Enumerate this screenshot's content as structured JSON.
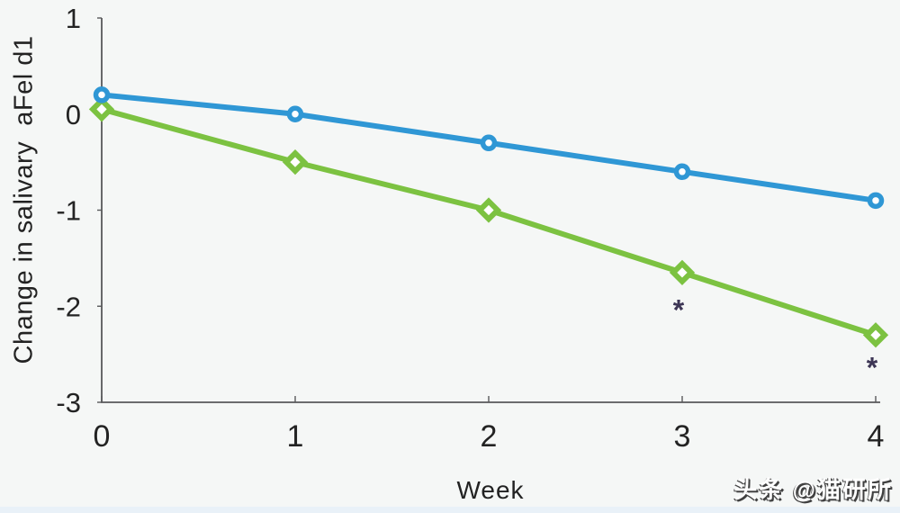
{
  "figure": {
    "background": "#f5f7f6",
    "watermark": {
      "text": "头条 @猫研所"
    }
  },
  "chart_data": {
    "type": "line",
    "x": [
      0,
      1,
      2,
      3,
      4
    ],
    "x_ticks": [
      "0",
      "1",
      "2",
      "3",
      "4"
    ],
    "y_ticks": [
      "1",
      "0",
      "-1",
      "-2",
      "-3"
    ],
    "y_tick_values": [
      1,
      0,
      -1,
      -2,
      -3
    ],
    "xlim": [
      0,
      4
    ],
    "ylim": [
      -3,
      1
    ],
    "xlabel": "Week",
    "ylabel": "Change in salivary  aFel d1",
    "grid": false,
    "legend": "none",
    "series": [
      {
        "name": "blue-circle-series",
        "marker": "circle",
        "color": "#2f97d5",
        "values": [
          0.2,
          0.0,
          -0.3,
          -0.6,
          -0.9
        ]
      },
      {
        "name": "green-diamond-series",
        "marker": "diamond",
        "color": "#7cc241",
        "values": [
          0.05,
          -0.5,
          -1.0,
          -1.65,
          -2.3
        ]
      }
    ],
    "annotations": [
      {
        "text": "*",
        "x": 3,
        "y": -2.0,
        "color": "#3d3655"
      },
      {
        "text": "*",
        "x": 4,
        "y": -2.6,
        "color": "#3d3655"
      }
    ],
    "axis_color": "#58595b",
    "text_color": "#232323"
  }
}
